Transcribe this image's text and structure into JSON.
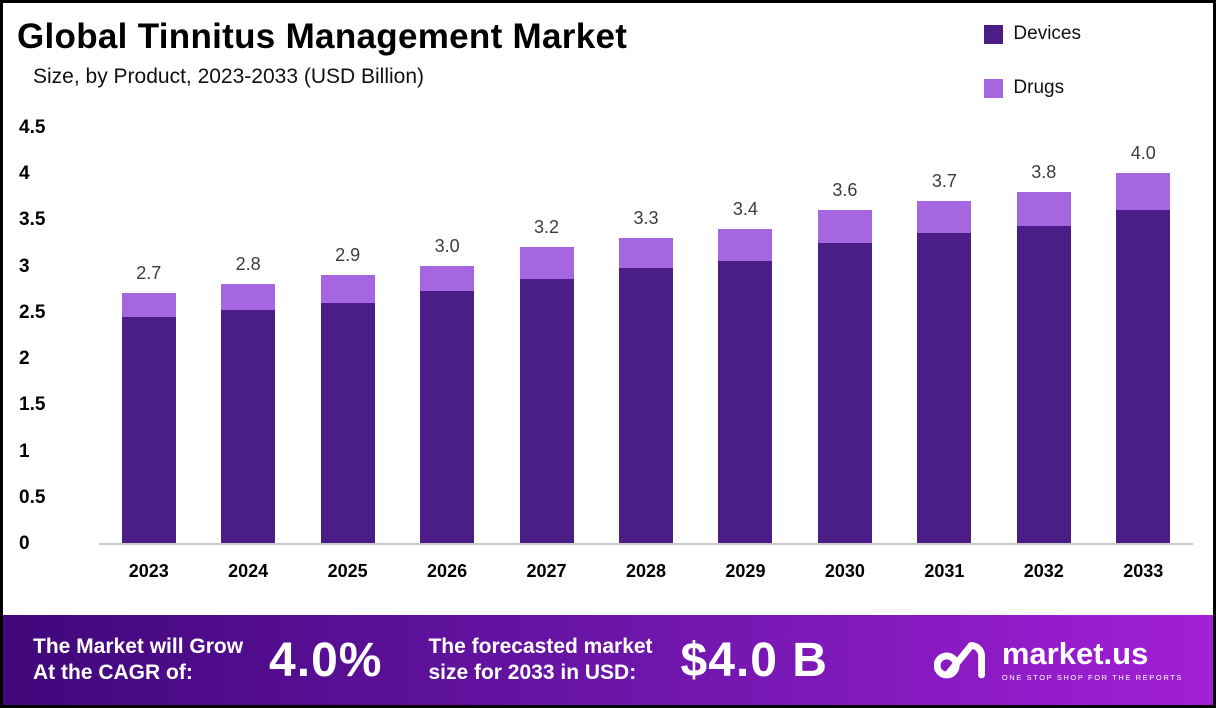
{
  "header": {
    "title": "Global Tinnitus Management Market",
    "subtitle": "Size, by Product, 2023-2033 (USD Billion)"
  },
  "legend": [
    {
      "label": "Devices",
      "color": "#4a1d87"
    },
    {
      "label": "Drugs",
      "color": "#a566e0"
    }
  ],
  "chart_data": {
    "type": "bar",
    "stacked": true,
    "title": "Global Tinnitus Management Market Size, by Product, 2023-2033 (USD Billion)",
    "xlabel": "",
    "ylabel": "",
    "ylim": [
      0,
      4.5
    ],
    "grid": false,
    "legend_position": "top-right",
    "categories": [
      "2023",
      "2024",
      "2025",
      "2026",
      "2027",
      "2028",
      "2029",
      "2030",
      "2031",
      "2032",
      "2033"
    ],
    "series": [
      {
        "name": "Devices",
        "color": "#4a1d87",
        "values": [
          2.45,
          2.52,
          2.6,
          2.73,
          2.86,
          2.97,
          3.05,
          3.24,
          3.35,
          3.43,
          3.6
        ]
      },
      {
        "name": "Drugs",
        "color": "#a566e0",
        "values": [
          0.25,
          0.28,
          0.3,
          0.27,
          0.34,
          0.33,
          0.35,
          0.36,
          0.35,
          0.37,
          0.4
        ]
      }
    ],
    "totals": [
      2.7,
      2.8,
      2.9,
      3.0,
      3.2,
      3.3,
      3.4,
      3.6,
      3.7,
      3.8,
      4.0
    ],
    "yticks": [
      {
        "value": 0,
        "label": "0"
      },
      {
        "value": 0.5,
        "label": "0.5"
      },
      {
        "value": 1,
        "label": "1"
      },
      {
        "value": 1.5,
        "label": "1.5"
      },
      {
        "value": 2,
        "label": "2"
      },
      {
        "value": 2.5,
        "label": "2.5"
      },
      {
        "value": 3,
        "label": "3"
      },
      {
        "value": 3.5,
        "label": "3.5"
      },
      {
        "value": 4,
        "label": "4"
      },
      {
        "value": 4.5,
        "label": "4.5"
      }
    ]
  },
  "footer": {
    "cagr_label": "The Market will Grow\nAt the CAGR of:",
    "cagr_value": "4.0%",
    "forecast_label": "The forecasted market\nsize for 2033 in USD:",
    "forecast_value": "$4.0 B",
    "brand": "market.us",
    "brand_tagline": "ONE STOP SHOP FOR THE REPORTS"
  }
}
